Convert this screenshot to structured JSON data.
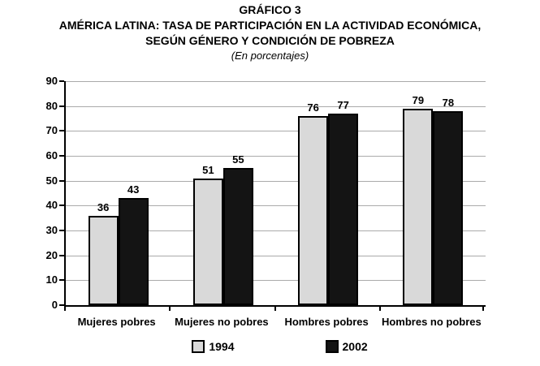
{
  "header": {
    "title": "GRÁFICO 3",
    "subtitle_line1": "AMÉRICA LATINA: TASA DE PARTICIPACIÓN EN LA ACTIVIDAD ECONÓMICA,",
    "subtitle_line2": "SEGÚN GÉNERO Y CONDICIÓN DE POBREZA",
    "note": "(En porcentajes)"
  },
  "chart_data": {
    "type": "bar",
    "categories": [
      "Mujeres pobres",
      "Mujeres no pobres",
      "Hombres pobres",
      "Hombres no pobres"
    ],
    "series": [
      {
        "name": "1994",
        "values": [
          36,
          51,
          76,
          79
        ],
        "color": "#d9d9d9"
      },
      {
        "name": "2002",
        "values": [
          43,
          55,
          77,
          78
        ],
        "color": "#141414"
      }
    ],
    "ylim": [
      0,
      90
    ],
    "ytick_step": 10,
    "yticks": [
      0,
      10,
      20,
      30,
      40,
      50,
      60,
      70,
      80,
      90
    ],
    "grid": true,
    "gridline_color": "#aaaaaa",
    "bar_border_color": "#000000",
    "axis_color": "#000000",
    "legend_position": "bottom"
  }
}
